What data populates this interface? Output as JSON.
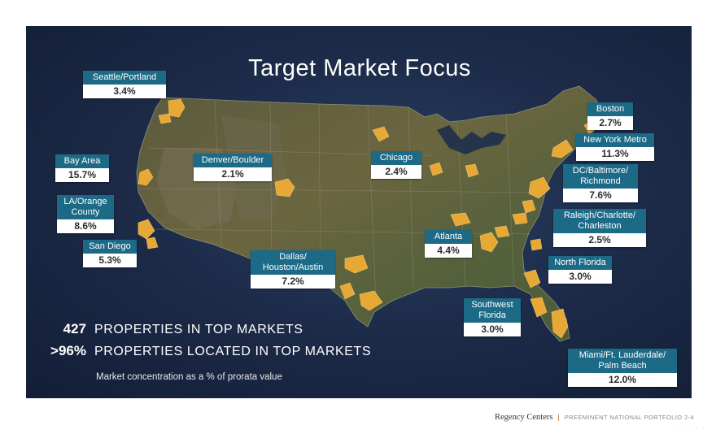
{
  "title": "Target Market Focus",
  "markets": [
    {
      "id": "seattle",
      "city": "Seattle/Portland",
      "pct": "3.4%"
    },
    {
      "id": "bay-area",
      "city": "Bay Area",
      "pct": "15.7%"
    },
    {
      "id": "la",
      "city": "LA/Orange\nCounty",
      "pct": "8.6%"
    },
    {
      "id": "san-diego",
      "city": "San Diego",
      "pct": "5.3%"
    },
    {
      "id": "denver",
      "city": "Denver/Boulder",
      "pct": "2.1%"
    },
    {
      "id": "dallas",
      "city": "Dallas/\nHouston/Austin",
      "pct": "7.2%"
    },
    {
      "id": "chicago",
      "city": "Chicago",
      "pct": "2.4%"
    },
    {
      "id": "atlanta",
      "city": "Atlanta",
      "pct": "4.4%"
    },
    {
      "id": "boston",
      "city": "Boston",
      "pct": "2.7%"
    },
    {
      "id": "new-york",
      "city": "New York Metro",
      "pct": "11.3%"
    },
    {
      "id": "dc",
      "city": "DC/Baltimore/\nRichmond",
      "pct": "7.6%"
    },
    {
      "id": "raleigh",
      "city": "Raleigh/Charlotte/\nCharleston",
      "pct": "2.5%"
    },
    {
      "id": "north-florida",
      "city": "North Florida",
      "pct": "3.0%"
    },
    {
      "id": "southwest-florida",
      "city": "Southwest\nFlorida",
      "pct": "3.0%"
    },
    {
      "id": "miami",
      "city": "Miami/Ft. Lauderdale/\nPalm Beach",
      "pct": "12.0%"
    }
  ],
  "stats": [
    {
      "num": "427",
      "text": "PROPERTIES IN TOP MARKETS"
    },
    {
      "num": ">96%",
      "text": "PROPERTIES LOCATED IN TOP MARKETS"
    }
  ],
  "note": "Market concentration as a % of prorata value",
  "footer": {
    "brand": "Regency Centers",
    "sep": "|",
    "subtitle": "PREEMINENT NATIONAL PORTFOLIO 2-4"
  },
  "colors": {
    "label_bg": "#1d6a86",
    "market_fill": "#e7a835",
    "background": "#1a2844"
  }
}
